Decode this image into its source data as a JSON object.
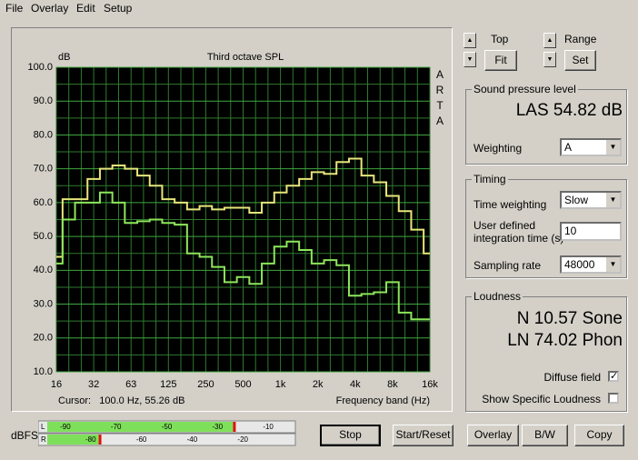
{
  "menu": [
    "File",
    "Overlay",
    "Edit",
    "Setup"
  ],
  "chart_data": {
    "type": "step",
    "title": "Third octave SPL",
    "y_label": "dB",
    "side_label": "ARTA",
    "x_label": "Frequency band (Hz)",
    "cursor": "Cursor:   100.0 Hz, 55.26 dB",
    "categories": [
      "16",
      null,
      null,
      "32",
      null,
      null,
      "63",
      null,
      null,
      "125",
      null,
      null,
      "250",
      null,
      null,
      "500",
      null,
      null,
      "1k",
      null,
      null,
      "2k",
      null,
      null,
      "4k",
      null,
      null,
      "8k",
      null,
      null,
      "16k"
    ],
    "series": [
      {
        "color": "#e6e67a",
        "values": [
          44,
          61,
          61,
          67,
          70,
          71,
          70,
          68,
          65,
          61,
          60,
          58,
          59,
          58,
          58.5,
          58.5,
          57,
          60,
          63,
          65,
          67,
          69,
          68.5,
          72,
          73,
          68,
          66,
          62,
          57.5,
          52,
          45
        ]
      },
      {
        "color": "#8ce65a",
        "values": [
          42,
          55,
          60,
          60,
          63,
          60,
          54,
          54.5,
          55,
          54,
          53.5,
          45,
          44,
          41,
          36.5,
          38,
          36,
          42,
          47,
          48.5,
          46,
          42,
          43,
          41.5,
          32.5,
          33,
          33.5,
          36.5,
          27.5,
          25.5,
          25.5
        ]
      }
    ],
    "ylim": [
      10,
      100
    ],
    "yticks": [
      {
        "value": 10,
        "label": "10.0"
      },
      {
        "value": 20,
        "label": "20.0"
      },
      {
        "value": 30,
        "label": "30.0"
      },
      {
        "value": 40,
        "label": "40.0"
      },
      {
        "value": 50,
        "label": "50.0"
      },
      {
        "value": 60,
        "label": "60.0"
      },
      {
        "value": 70,
        "label": "70.0"
      },
      {
        "value": 80,
        "label": "80.0"
      },
      {
        "value": 90,
        "label": "90.0"
      },
      {
        "value": 100,
        "label": "100.0"
      }
    ],
    "minor_yticks": [
      15,
      25,
      35,
      45,
      55,
      65,
      75,
      85,
      95
    ],
    "grid": true
  },
  "controls": {
    "top": "Top",
    "fit": "Fit",
    "range": "Range",
    "set": "Set"
  },
  "spl": {
    "title": "Sound pressure level",
    "reading": "LAS 54.82 dB",
    "weighting_label": "Weighting",
    "weighting": "A"
  },
  "timing": {
    "title": "Timing",
    "time_weighting_label": "Time weighting",
    "time_weighting": "Slow",
    "integration_label": [
      "User defined",
      "integration time (s)"
    ],
    "integration": "10",
    "sampling_label": "Sampling rate",
    "sampling": "48000"
  },
  "loudness": {
    "title": "Loudness",
    "n": "N 10.57 Sone",
    "ln": "LN 74.02 Phon",
    "diffuse": {
      "label": "Diffuse field",
      "checked": true
    },
    "specific": {
      "label": "Show Specific Loudness",
      "checked": false
    }
  },
  "meter": {
    "label": "dBFS",
    "lim": [
      -100,
      0
    ],
    "channels": [
      {
        "name": "L",
        "ticks": [
          -90,
          -70,
          -50,
          -30,
          -10
        ],
        "level": -23.5
      },
      {
        "name": "R",
        "ticks": [
          -80,
          -60,
          -40,
          -20
        ],
        "level": -76.5
      }
    ]
  },
  "buttons": [
    "Stop",
    "Start/Reset",
    "Overlay",
    "B/W",
    "Copy"
  ]
}
